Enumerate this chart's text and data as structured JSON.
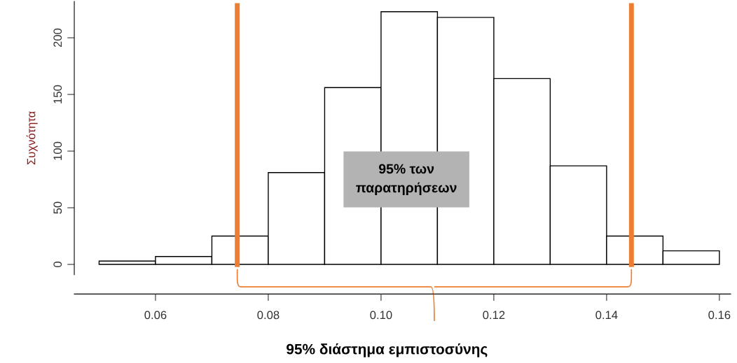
{
  "chart_data": {
    "type": "histogram",
    "ylabel": "Συχνότητα",
    "color": "#ffffff",
    "bins": [
      0.05,
      0.06,
      0.07,
      0.08,
      0.09,
      0.1,
      0.11,
      0.12,
      0.13,
      0.14,
      0.15,
      0.16
    ],
    "values": [
      3,
      7,
      25,
      81,
      156,
      223,
      218,
      164,
      87,
      25,
      12
    ],
    "xlim": [
      0.0456,
      0.162
    ],
    "ylim": [
      -9,
      232
    ],
    "xticks": [
      {
        "value": 0.06,
        "label": "0.06"
      },
      {
        "value": 0.08,
        "label": "0.08"
      },
      {
        "value": 0.1,
        "label": "0.10"
      },
      {
        "value": 0.12,
        "label": "0.12"
      },
      {
        "value": 0.14,
        "label": "0.14"
      },
      {
        "value": 0.16,
        "label": "0.16"
      }
    ],
    "yticks": [
      0,
      50,
      100,
      150,
      200
    ],
    "ref_lines": [
      {
        "axis": "x",
        "value": 0.0745,
        "color": "#ed7d31"
      },
      {
        "axis": "x",
        "value": 0.1444,
        "color": "#ed7d31"
      }
    ],
    "annotations": [
      "95% των\nπαρατηρήσεων",
      "95% διάστημα εμπιστοσύνης"
    ],
    "grid": false
  }
}
